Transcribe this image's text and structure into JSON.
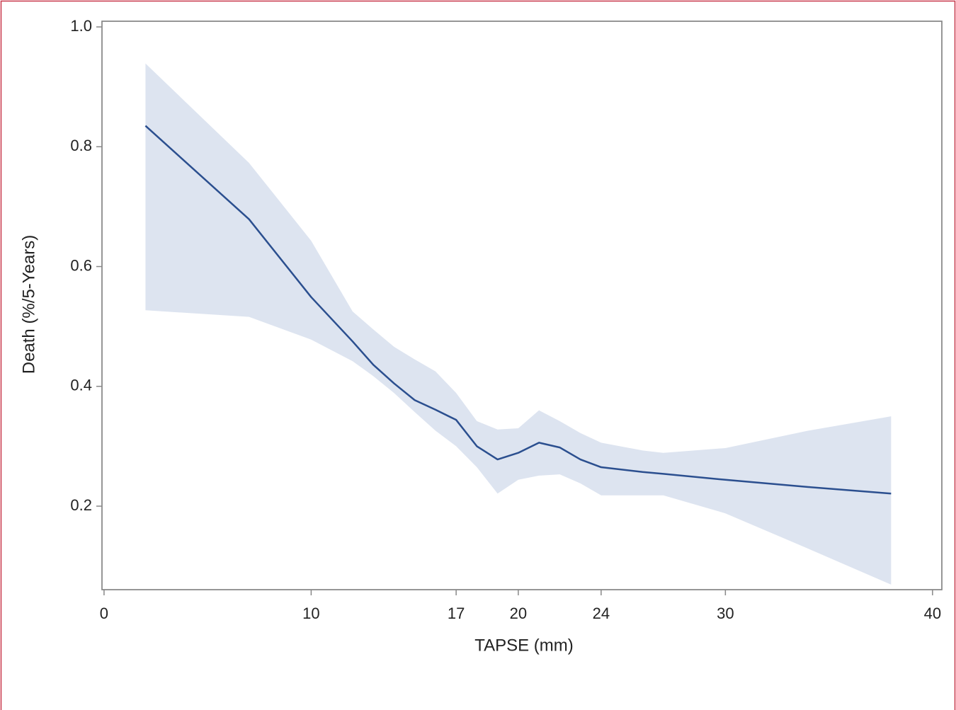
{
  "chart_data": {
    "type": "line",
    "xlabel": "TAPSE (mm)",
    "ylabel": "Death (%/5-Years)",
    "x": [
      2,
      7,
      10,
      12,
      13,
      14,
      15,
      16,
      17,
      18,
      19,
      20,
      21,
      22,
      23,
      24,
      26,
      27,
      30,
      34,
      38
    ],
    "series": [
      {
        "color": "#2b4f8f",
        "band_color": "#dde4f0",
        "values": [
          0.835,
          0.679,
          0.549,
          0.475,
          0.436,
          0.405,
          0.377,
          0.361,
          0.344,
          0.3,
          0.278,
          0.289,
          0.306,
          0.298,
          0.278,
          0.265,
          0.257,
          0.254,
          0.244,
          0.232,
          0.221
        ],
        "upper": [
          0.939,
          0.773,
          0.643,
          0.525,
          0.495,
          0.466,
          0.445,
          0.425,
          0.389,
          0.342,
          0.328,
          0.33,
          0.36,
          0.342,
          0.322,
          0.306,
          0.293,
          0.289,
          0.297,
          0.326,
          0.35
        ],
        "lower": [
          0.527,
          0.516,
          0.478,
          0.442,
          0.417,
          0.389,
          0.357,
          0.326,
          0.3,
          0.265,
          0.221,
          0.244,
          0.251,
          0.253,
          0.238,
          0.218,
          0.218,
          0.218,
          0.188,
          0.129,
          0.069
        ]
      }
    ],
    "xlim": [
      -0.1,
      40.45
    ],
    "ylim": [
      0.0606,
      1.0095
    ],
    "xticks": [
      0,
      10,
      17,
      20,
      24,
      30,
      40
    ],
    "yticks": [
      0.2,
      0.4,
      0.6,
      0.8,
      {
        "value": 1.0,
        "label": "1.0"
      }
    ],
    "grid": false
  }
}
